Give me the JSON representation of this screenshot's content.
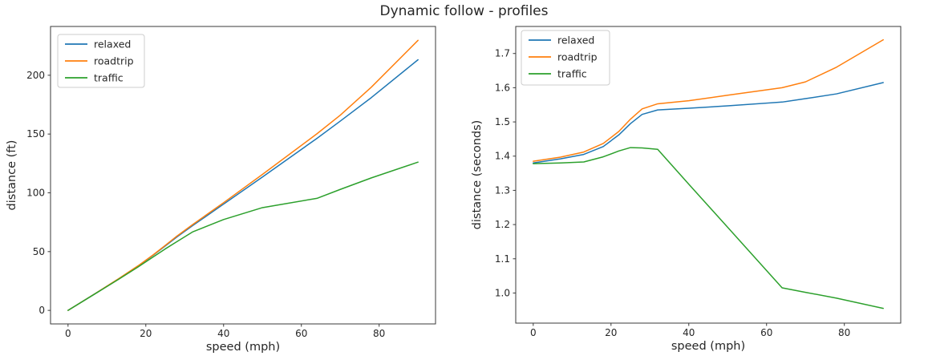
{
  "figure": {
    "title": "Dynamic follow - profiles",
    "background": "#ffffff",
    "text_color": "#262626",
    "spine_color": "#3a3a3a",
    "legend_border_color": "#cccccc"
  },
  "chart_data": [
    {
      "type": "line",
      "xlabel": "speed (mph)",
      "ylabel": "distance (ft)",
      "xlim": [
        -4.5,
        94.5
      ],
      "ylim": [
        -11.5,
        241.5
      ],
      "xticks": [
        0,
        20,
        40,
        60,
        80
      ],
      "xtick_labels": [
        "0",
        "20",
        "40",
        "60",
        "80"
      ],
      "yticks": [
        0,
        50,
        100,
        150,
        200
      ],
      "ytick_labels": [
        "0",
        "50",
        "100",
        "150",
        "200"
      ],
      "grid": false,
      "legend_position": "upper-left",
      "x": [
        0,
        7,
        13,
        18,
        22,
        25,
        28,
        32,
        40,
        50,
        64,
        70,
        78,
        90
      ],
      "series": [
        {
          "name": "relaxed",
          "color": "#1f77b4",
          "values": [
            0,
            14.3,
            26.8,
            37.7,
            47.2,
            54.8,
            62.5,
            72.0,
            90.4,
            113.5,
            146.3,
            161.0,
            181.0,
            213.2
          ]
        },
        {
          "name": "roadtrip",
          "color": "#ff7f0e",
          "values": [
            0,
            14.3,
            26.9,
            37.9,
            47.5,
            55.3,
            63.2,
            72.9,
            91.6,
            115.7,
            150.2,
            166.0,
            189.9,
            229.7
          ]
        },
        {
          "name": "traffic",
          "color": "#2ca02c",
          "values": [
            0,
            14.2,
            26.4,
            36.9,
            45.7,
            52.3,
            58.5,
            66.7,
            77.3,
            87.4,
            95.3,
            102.9,
            112.7,
            126.1
          ]
        }
      ]
    },
    {
      "type": "line",
      "xlabel": "speed (mph)",
      "ylabel": "distance (seconds)",
      "xlim": [
        -4.5,
        94.5
      ],
      "ylim": [
        0.912,
        1.779
      ],
      "xticks": [
        0,
        20,
        40,
        60,
        80
      ],
      "xtick_labels": [
        "0",
        "20",
        "40",
        "60",
        "80"
      ],
      "yticks": [
        1.0,
        1.1,
        1.2,
        1.3,
        1.4,
        1.5,
        1.6,
        1.7
      ],
      "ytick_labels": [
        "1.0",
        "1.1",
        "1.2",
        "1.3",
        "1.4",
        "1.5",
        "1.6",
        "1.7"
      ],
      "grid": false,
      "legend_position": "upper-left",
      "x": [
        0,
        7,
        13,
        18,
        22,
        25,
        28,
        32,
        40,
        50,
        64,
        70,
        78,
        90
      ],
      "series": [
        {
          "name": "relaxed",
          "color": "#1f77b4",
          "values": [
            1.38,
            1.392,
            1.405,
            1.428,
            1.462,
            1.495,
            1.522,
            1.535,
            1.54,
            1.547,
            1.558,
            1.568,
            1.582,
            1.615
          ]
        },
        {
          "name": "roadtrip",
          "color": "#ff7f0e",
          "values": [
            1.385,
            1.397,
            1.412,
            1.437,
            1.472,
            1.508,
            1.538,
            1.553,
            1.562,
            1.578,
            1.6,
            1.617,
            1.66,
            1.74
          ]
        },
        {
          "name": "traffic",
          "color": "#2ca02c",
          "values": [
            1.378,
            1.38,
            1.383,
            1.398,
            1.415,
            1.425,
            1.424,
            1.42,
            1.318,
            1.192,
            1.015,
            1.002,
            0.985,
            0.955
          ]
        }
      ]
    }
  ]
}
